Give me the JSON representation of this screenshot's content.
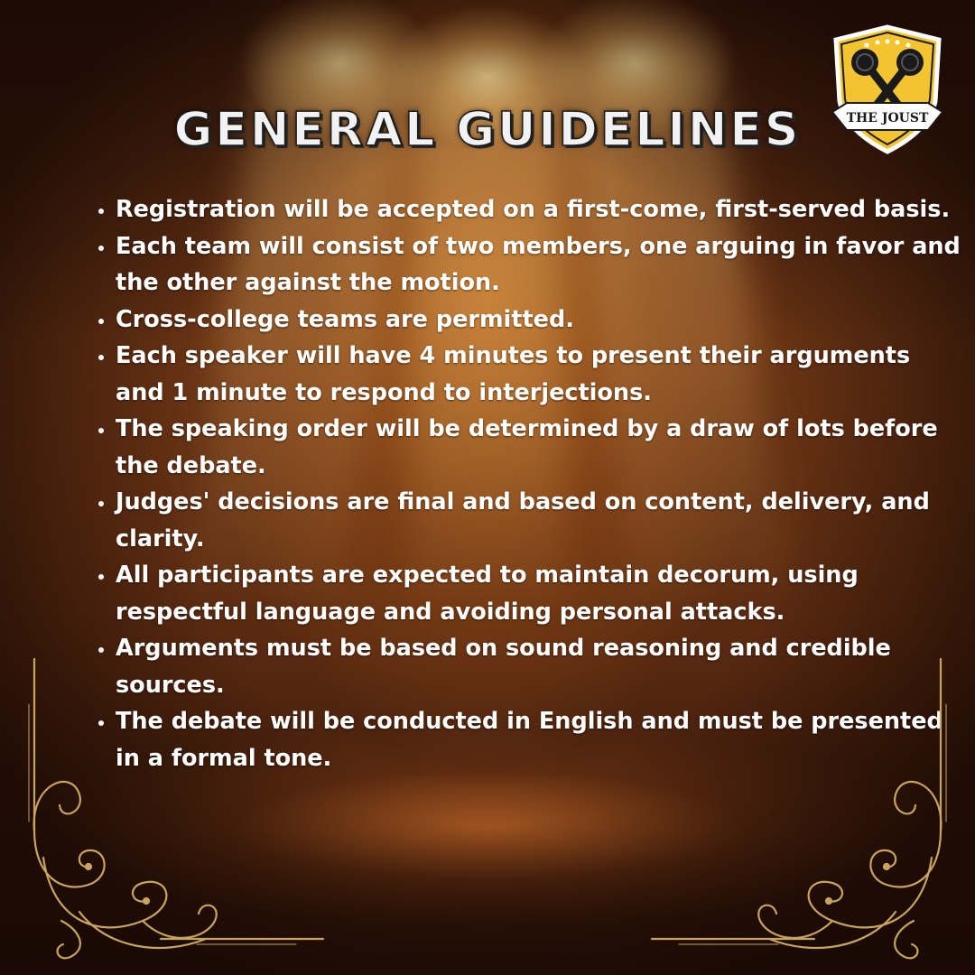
{
  "poster": {
    "title": "GENERAL GUIDELINES",
    "logo_text": "THE JOUST",
    "guidelines": [
      "Registration will be accepted on a first-come, first-served basis.",
      "Each team will consist of two members, one arguing in favor and the other against the motion.",
      "Cross-college teams are permitted.",
      "Each speaker will have 4 minutes to present their arguments and 1 minute to respond to interjections.",
      "The speaking order will be determined by a draw of lots before the debate.",
      "Judges' decisions are final and based on content, delivery, and clarity.",
      "All participants are expected to maintain decorum, using respectful language and avoiding personal attacks.",
      "Arguments must be based on sound reasoning and credible sources.",
      "The debate will be conducted in English and must be presented in a formal tone."
    ]
  },
  "icons": {
    "logo": "microphone-shield-icon",
    "ornaments": "gold-filigree-ornament-icon"
  },
  "colors": {
    "background_dark": "#2a1208",
    "spotlight": "#ffe6a8",
    "text": "#ffffff",
    "gold": "#c9a45c",
    "shield_yellow": "#f4c430"
  }
}
